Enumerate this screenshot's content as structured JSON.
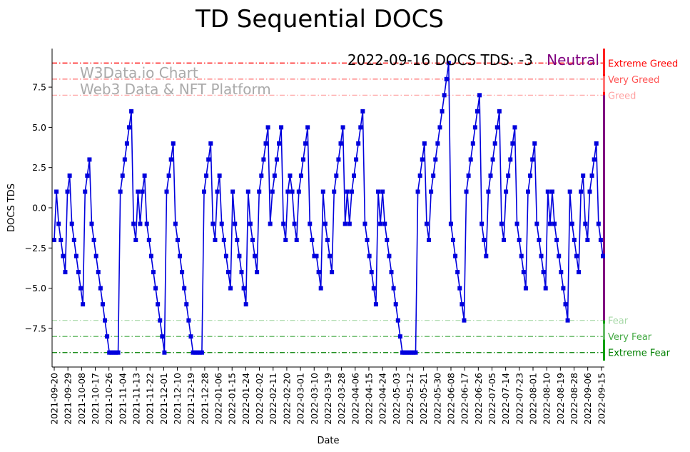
{
  "chart_data": {
    "type": "line",
    "title": "TD Sequential DOCS",
    "xlabel": "Date",
    "ylabel": "DOCS TDS",
    "ylim": [
      -9.9,
      9.9
    ],
    "yticks": [
      -7.5,
      -5.0,
      -2.5,
      0.0,
      2.5,
      5.0,
      7.5
    ],
    "ytick_labels": [
      "−7.5",
      "−5.0",
      "−2.5",
      "0.0",
      "2.5",
      "5.0",
      "7.5"
    ],
    "x_start": "2021-09-20",
    "x_end": "2022-09-16",
    "x_tick_labels": [
      "2021-09-20",
      "2021-09-29",
      "2021-10-08",
      "2021-10-17",
      "2021-10-26",
      "2021-11-04",
      "2021-11-13",
      "2021-11-22",
      "2021-12-01",
      "2021-12-10",
      "2021-12-19",
      "2021-12-28",
      "2022-01-06",
      "2022-01-15",
      "2022-01-24",
      "2022-02-02",
      "2022-02-11",
      "2022-02-20",
      "2022-03-01",
      "2022-03-10",
      "2022-03-19",
      "2022-03-28",
      "2022-04-06",
      "2022-04-15",
      "2022-04-24",
      "2022-05-03",
      "2022-05-12",
      "2022-05-21",
      "2022-05-30",
      "2022-06-08",
      "2022-06-17",
      "2022-06-26",
      "2022-07-05",
      "2022-07-14",
      "2022-07-23",
      "2022-08-01",
      "2022-08-10",
      "2022-08-19",
      "2022-08-28",
      "2022-09-06",
      "2022-09-15"
    ],
    "grid": false,
    "series": [
      {
        "color": "#0000dd",
        "marker": "square",
        "values": [
          -2,
          1,
          -1,
          -2,
          -3,
          -4,
          1,
          2,
          -1,
          -2,
          -3,
          -4,
          -5,
          -6,
          1,
          2,
          3,
          -1,
          -2,
          -3,
          -4,
          -5,
          -6,
          -7,
          -8,
          -9,
          -9,
          -9,
          -9,
          -9,
          1,
          2,
          3,
          4,
          5,
          6,
          -1,
          -2,
          1,
          -1,
          1,
          2,
          -1,
          -2,
          -3,
          -4,
          -5,
          -6,
          -7,
          -8,
          -9,
          1,
          2,
          3,
          4,
          -1,
          -2,
          -3,
          -4,
          -5,
          -6,
          -7,
          -8,
          -9,
          -9,
          -9,
          -9,
          -9,
          1,
          2,
          3,
          4,
          -1,
          -2,
          1,
          2,
          -1,
          -2,
          -3,
          -4,
          -5,
          1,
          -1,
          -2,
          -3,
          -4,
          -5,
          -6,
          1,
          -1,
          -2,
          -3,
          -4,
          1,
          2,
          3,
          4,
          5,
          -1,
          1,
          2,
          3,
          4,
          5,
          -1,
          -2,
          1,
          2,
          1,
          -1,
          -2,
          1,
          2,
          3,
          4,
          5,
          -1,
          -2,
          -3,
          -3,
          -4,
          -5,
          1,
          -1,
          -2,
          -3,
          -4,
          1,
          2,
          3,
          4,
          5,
          -1,
          1,
          -1,
          1,
          2,
          3,
          4,
          5,
          6,
          -1,
          -2,
          -3,
          -4,
          -5,
          -6,
          1,
          -1,
          1,
          -1,
          -2,
          -3,
          -4,
          -5,
          -6,
          -7,
          -8,
          -9,
          -9,
          -9,
          -9,
          -9,
          -9,
          -9,
          1,
          2,
          3,
          4,
          -1,
          -2,
          1,
          2,
          3,
          4,
          5,
          6,
          7,
          8,
          9,
          -1,
          -2,
          -3,
          -4,
          -5,
          -6,
          -7,
          1,
          2,
          3,
          4,
          5,
          6,
          7,
          -1,
          -2,
          -3,
          1,
          2,
          3,
          4,
          5,
          6,
          -1,
          -2,
          1,
          2,
          3,
          4,
          5,
          -1,
          -2,
          -3,
          -4,
          -5,
          1,
          2,
          3,
          4,
          -1,
          -2,
          -3,
          -4,
          -5,
          1,
          -1,
          1,
          -1,
          -2,
          -3,
          -4,
          -5,
          -6,
          -7,
          1,
          -1,
          -2,
          -3,
          -4,
          1,
          2,
          -1,
          -2,
          1,
          2,
          3,
          4,
          -1,
          -2,
          -3
        ]
      }
    ],
    "levels": [
      {
        "label": "Extreme Greed",
        "value": 9,
        "color": "#ff0000"
      },
      {
        "label": "Very Greed",
        "value": 8,
        "color": "#ff5555"
      },
      {
        "label": "Greed",
        "value": 7,
        "color": "#ffa0a0"
      },
      {
        "label": "Fear",
        "value": -7,
        "color": "#a6d8a6"
      },
      {
        "label": "Very Fear",
        "value": -8,
        "color": "#44aa44"
      },
      {
        "label": "Extreme Fear",
        "value": -9,
        "color": "#008000"
      }
    ],
    "status": {
      "text": "2022-09-16 DOCS TDS: -3",
      "label": "Neutral",
      "label_color": "#800080"
    },
    "watermark": [
      "W3Data.io Chart",
      "Web3 Data & NFT Platform"
    ],
    "neutral_band_color": "#800080"
  }
}
